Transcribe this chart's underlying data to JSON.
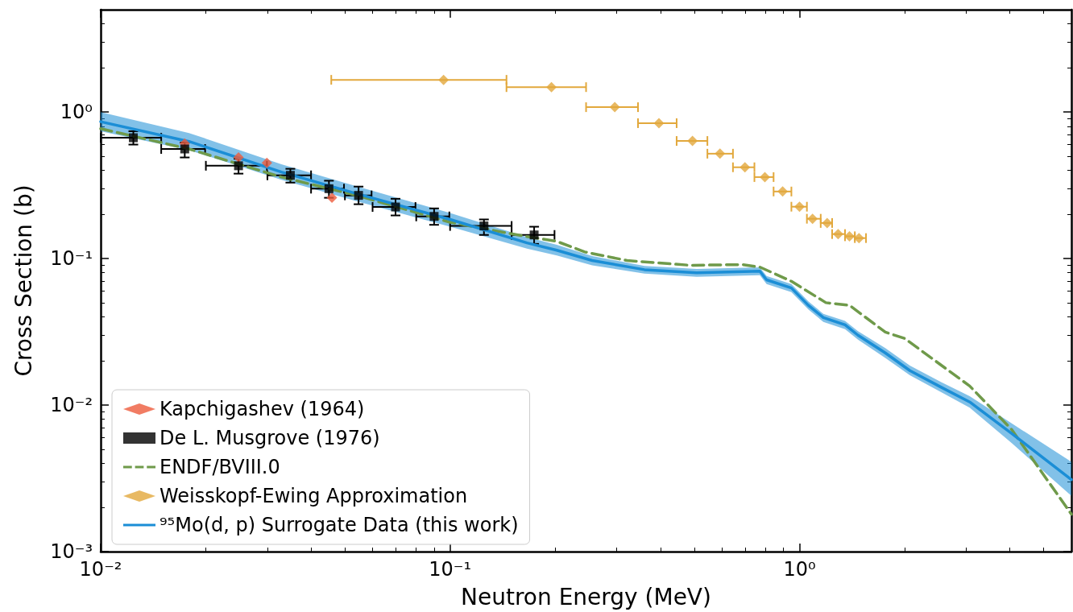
{
  "chart_data": {
    "type": "scatter",
    "xlabel": "Neutron Energy (MeV)",
    "ylabel": "Cross Section (b)",
    "log": "xy",
    "xlim": [
      0.01,
      6
    ],
    "ylim": [
      0.001,
      5
    ],
    "xticks": [
      {
        "value": 0.01,
        "label": "10⁻²"
      },
      {
        "value": 0.1,
        "label": "10⁻¹"
      },
      {
        "value": 1,
        "label": "10⁰"
      }
    ],
    "yticks": [
      {
        "value": 0.001,
        "label": "10⁻³"
      },
      {
        "value": 0.01,
        "label": "10⁻²"
      },
      {
        "value": 0.1,
        "label": "10⁻¹"
      },
      {
        "value": 1,
        "label": "10⁰"
      }
    ],
    "grid": false,
    "legend": "bottom left",
    "series": [
      {
        "name": "Kapchigashev (1964)",
        "marker": "diamond",
        "color": "#ee5b3c",
        "x": [
          0.0174,
          0.0248,
          0.0299,
          0.0459
        ],
        "values": [
          0.61,
          0.49,
          0.45,
          0.26
        ]
      },
      {
        "name": "De L. Musgrove (1976)",
        "marker": "square",
        "color": "#000000",
        "x": [
          0.0124,
          0.0174,
          0.0248,
          0.0349,
          0.045,
          0.0547,
          0.0698,
          0.09,
          0.125,
          0.174
        ],
        "values": [
          0.668,
          0.56,
          0.43,
          0.37,
          0.3,
          0.27,
          0.225,
          0.194,
          0.167,
          0.145
        ],
        "errors": [
          [
            0.6,
            0.74
          ],
          [
            0.49,
            0.62
          ],
          [
            0.38,
            0.48
          ],
          [
            0.33,
            0.41
          ],
          [
            0.26,
            0.34
          ],
          [
            0.235,
            0.31
          ],
          [
            0.197,
            0.256
          ],
          [
            0.17,
            0.22
          ],
          [
            0.145,
            0.185
          ],
          [
            0.126,
            0.165
          ]
        ],
        "xerrors": [
          [
            0.01,
            0.0149
          ],
          [
            0.0149,
            0.0199
          ],
          [
            0.02,
            0.0299
          ],
          [
            0.03,
            0.04
          ],
          [
            0.04,
            0.0497
          ],
          [
            0.05,
            0.0596
          ],
          [
            0.06,
            0.0796
          ],
          [
            0.08,
            0.0995
          ],
          [
            0.1,
            0.15
          ],
          [
            0.15,
            0.199
          ]
        ]
      },
      {
        "name": "ENDF/BVIII.0",
        "type": "line",
        "marker": "none",
        "line_style": "dashed",
        "color": "#6f9a4a",
        "x": [
          0.01,
          0.0179,
          0.0329,
          0.0544,
          0.1,
          0.161,
          0.202,
          0.243,
          0.321,
          0.487,
          0.687,
          0.77,
          0.948,
          1.19,
          1.39,
          1.76,
          2.0,
          3.07,
          4.05,
          6
        ],
        "values": [
          0.77,
          0.56,
          0.36,
          0.269,
          0.177,
          0.143,
          0.131,
          0.111,
          0.097,
          0.09,
          0.091,
          0.0875,
          0.07,
          0.05,
          0.048,
          0.0315,
          0.0285,
          0.0135,
          0.0068,
          0.0018
        ]
      },
      {
        "name": "Weisskopf-Ewing Approximation",
        "marker": "diamond",
        "color": "#e2a83c",
        "x": [
          0.0958,
          0.195,
          0.296,
          0.396,
          0.494,
          0.592,
          0.698,
          0.796,
          0.895,
          1.0,
          1.09,
          1.2,
          1.29,
          1.39,
          1.48
        ],
        "values": [
          1.66,
          1.48,
          1.08,
          0.84,
          0.635,
          0.52,
          0.42,
          0.36,
          0.287,
          0.226,
          0.187,
          0.175,
          0.147,
          0.142,
          0.138
        ],
        "xerrors": [
          [
            0.0457,
            0.145
          ],
          [
            0.145,
            0.245
          ],
          [
            0.245,
            0.345
          ],
          [
            0.345,
            0.445
          ],
          [
            0.445,
            0.545
          ],
          [
            0.545,
            0.645
          ],
          [
            0.645,
            0.743
          ],
          [
            0.743,
            0.843
          ],
          [
            0.843,
            0.948
          ],
          [
            0.948,
            1.05
          ],
          [
            1.05,
            1.15
          ],
          [
            1.15,
            1.24
          ],
          [
            1.24,
            1.35
          ],
          [
            1.35,
            1.44
          ],
          [
            1.44,
            1.55
          ]
        ]
      },
      {
        "name": "⁹⁵Mo(d, p) Surrogate Data (this work)",
        "type": "line",
        "marker": "none",
        "line_style": "solid",
        "color": "#1b8ed6",
        "x": [
          0.01,
          0.0179,
          0.0329,
          0.0544,
          0.1,
          0.166,
          0.202,
          0.255,
          0.36,
          0.508,
          0.77,
          0.805,
          0.948,
          1.06,
          1.17,
          1.35,
          1.47,
          1.76,
          2.07,
          2.55,
          3.07,
          4.05,
          6
        ],
        "values": [
          0.86,
          0.63,
          0.39,
          0.276,
          0.185,
          0.128,
          0.114,
          0.097,
          0.084,
          0.08,
          0.082,
          0.0716,
          0.063,
          0.048,
          0.0396,
          0.0353,
          0.03,
          0.0227,
          0.0172,
          0.0132,
          0.0105,
          0.0064,
          0.0031
        ],
        "lower": [
          0.74,
          0.55,
          0.345,
          0.245,
          0.165,
          0.117,
          0.105,
          0.09,
          0.079,
          0.075,
          0.077,
          0.067,
          0.059,
          0.045,
          0.037,
          0.033,
          0.028,
          0.021,
          0.016,
          0.0122,
          0.0096,
          0.0055,
          0.0024
        ],
        "upper": [
          1.0,
          0.72,
          0.44,
          0.31,
          0.205,
          0.14,
          0.124,
          0.104,
          0.089,
          0.085,
          0.087,
          0.076,
          0.067,
          0.051,
          0.042,
          0.0375,
          0.032,
          0.0245,
          0.0186,
          0.0143,
          0.0115,
          0.0075,
          0.0041
        ]
      }
    ]
  }
}
